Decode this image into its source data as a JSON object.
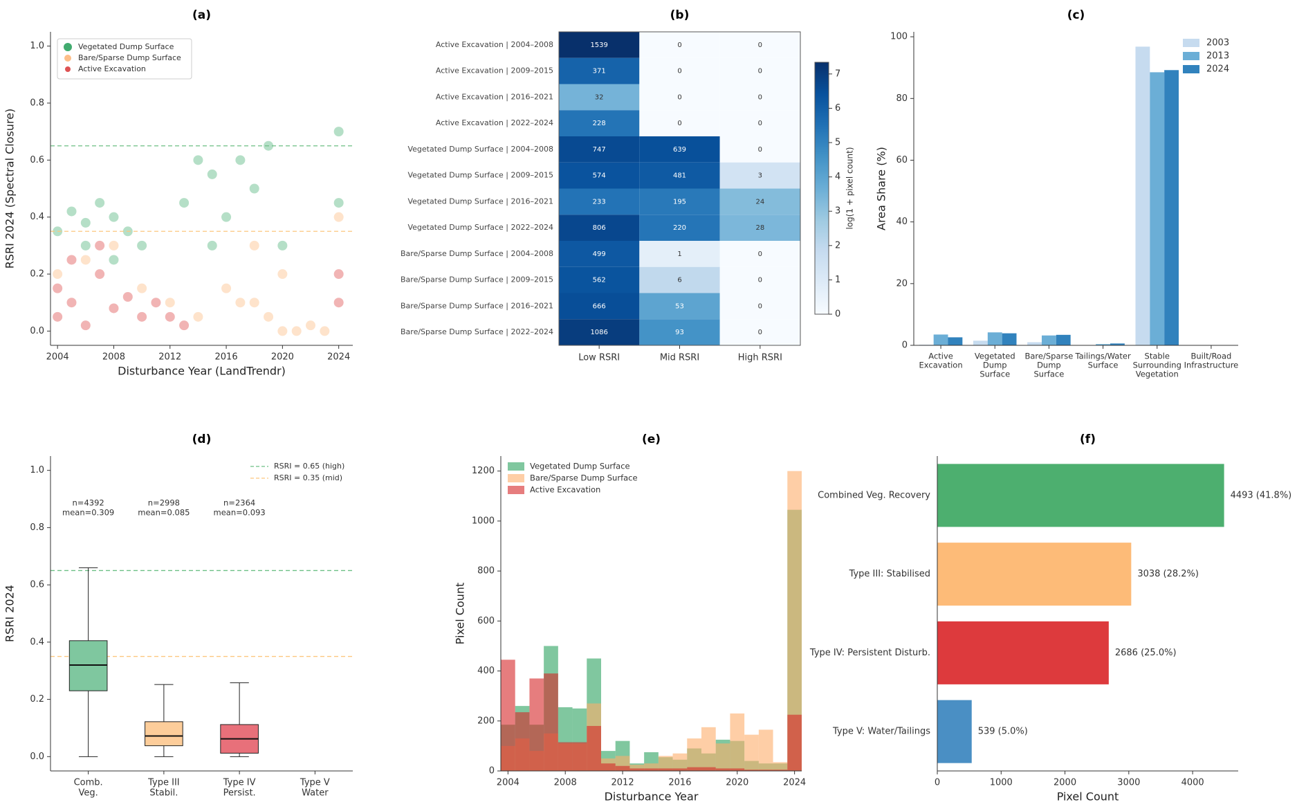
{
  "chart_data": [
    {
      "type": "scatter",
      "title": "(a)",
      "xlabel": "Disturbance Year (LandTrendr)",
      "ylabel": "RSRI 2024 (Spectral Closure)",
      "xlim": [
        2003.5,
        2025
      ],
      "ylim": [
        -0.05,
        1.05
      ],
      "xticks": [
        2004,
        2008,
        2012,
        2016,
        2020,
        2024
      ],
      "yticks": [
        {
          "value": 0,
          "label": "0.0"
        },
        {
          "value": 0.2,
          "label": "0.2"
        },
        {
          "value": 0.4,
          "label": "0.4"
        },
        {
          "value": 0.6,
          "label": "0.6"
        },
        {
          "value": 0.8,
          "label": "0.8"
        },
        {
          "value": 1,
          "label": "1.0"
        }
      ],
      "legend": "upper left",
      "hlines": [
        {
          "value": 0.65,
          "color": "#6cbf84"
        },
        {
          "value": 0.35,
          "color": "#fdc77f"
        }
      ],
      "series": [
        {
          "name": "Vegetated Dump Surface",
          "color": "#2ca25f",
          "x": [
            2004,
            2005,
            2006,
            2007,
            2008,
            2009,
            2010,
            2013,
            2014,
            2015,
            2016,
            2017,
            2018,
            2019,
            2020,
            2024,
            2024,
            2006,
            2008,
            2015
          ],
          "y": [
            0.35,
            0.42,
            0.38,
            0.45,
            0.4,
            0.35,
            0.3,
            0.45,
            0.6,
            0.55,
            0.4,
            0.6,
            0.5,
            0.65,
            0.3,
            0.7,
            0.45,
            0.3,
            0.25,
            0.3
          ]
        },
        {
          "name": "Bare/Sparse Dump Surface",
          "color": "#fdae6b",
          "x": [
            2004,
            2006,
            2008,
            2010,
            2012,
            2014,
            2016,
            2017,
            2018,
            2019,
            2020,
            2021,
            2022,
            2023,
            2024,
            2018,
            2020
          ],
          "y": [
            0.2,
            0.25,
            0.3,
            0.15,
            0.1,
            0.05,
            0.15,
            0.1,
            0.3,
            0.05,
            0,
            0,
            0.02,
            0,
            0.4,
            0.1,
            0.2
          ]
        },
        {
          "name": "Active Excavation",
          "color": "#d62728",
          "x": [
            2004,
            2004,
            2005,
            2006,
            2007,
            2008,
            2009,
            2010,
            2011,
            2012,
            2013,
            2024,
            2024,
            2007,
            2005
          ],
          "y": [
            0.05,
            0.15,
            0.1,
            0.02,
            0.2,
            0.08,
            0.12,
            0.05,
            0.1,
            0.05,
            0.02,
            0.1,
            0.2,
            0.3,
            0.25
          ]
        }
      ]
    },
    {
      "type": "heatmap",
      "title": "(b)",
      "colormap": "Blues",
      "colorbar_label": "log(1 + pixel count)",
      "clim": [
        0,
        7.34
      ],
      "cticks": [
        0,
        1,
        2,
        3,
        4,
        5,
        6,
        7
      ],
      "columns": [
        "Low RSRI",
        "Mid RSRI",
        "High RSRI"
      ],
      "rows": [
        "Active Excavation | 2004–2008",
        "Active Excavation | 2009–2015",
        "Active Excavation | 2016–2021",
        "Active Excavation | 2022–2024",
        "Vegetated Dump Surface | 2004–2008",
        "Vegetated Dump Surface | 2009–2015",
        "Vegetated Dump Surface | 2016–2021",
        "Vegetated Dump Surface | 2022–2024",
        "Bare/Sparse Dump Surface | 2004–2008",
        "Bare/Sparse Dump Surface | 2009–2015",
        "Bare/Sparse Dump Surface | 2016–2021",
        "Bare/Sparse Dump Surface | 2022–2024"
      ],
      "values": [
        [
          1539,
          0,
          0
        ],
        [
          371,
          0,
          0
        ],
        [
          32,
          0,
          0
        ],
        [
          228,
          0,
          0
        ],
        [
          747,
          639,
          0
        ],
        [
          574,
          481,
          3
        ],
        [
          233,
          195,
          24
        ],
        [
          806,
          220,
          28
        ],
        [
          499,
          1,
          0
        ],
        [
          562,
          6,
          0
        ],
        [
          666,
          53,
          0
        ],
        [
          1086,
          93,
          0
        ]
      ]
    },
    {
      "type": "bar",
      "title": "(c)",
      "ylabel": "Area Share (%)",
      "ylim": [
        0,
        101.6
      ],
      "yticks": [
        0,
        20,
        40,
        60,
        80,
        100
      ],
      "legend": "upper right",
      "categories": [
        [
          "Active",
          "Excavation"
        ],
        [
          "Vegetated",
          "Dump",
          "Surface"
        ],
        [
          "Bare/Sparse",
          "Dump",
          "Surface"
        ],
        [
          "Tailings/Water",
          "Surface"
        ],
        [
          "Stable",
          "Surrounding",
          "Vegetation"
        ],
        [
          "Built/Road",
          "Infrastructure"
        ]
      ],
      "series": [
        {
          "name": "2003",
          "color": "#c6dbef",
          "values": [
            0.2,
            1.5,
            1.0,
            0.1,
            96.8,
            0.1
          ]
        },
        {
          "name": "2013",
          "color": "#6baed6",
          "values": [
            3.5,
            4.2,
            3.2,
            0.4,
            88.5,
            0.1
          ]
        },
        {
          "name": "2024",
          "color": "#3182bd",
          "values": [
            2.6,
            3.9,
            3.4,
            0.6,
            89.2,
            0.1
          ]
        }
      ]
    },
    {
      "type": "box",
      "title": "(d)",
      "ylabel": "RSRI 2024",
      "ylim": [
        -0.05,
        1.05
      ],
      "yticks": [
        {
          "value": 0,
          "label": "0.0"
        },
        {
          "value": 0.2,
          "label": "0.2"
        },
        {
          "value": 0.4,
          "label": "0.4"
        },
        {
          "value": 0.6,
          "label": "0.6"
        },
        {
          "value": 0.8,
          "label": "0.8"
        },
        {
          "value": 1,
          "label": "1.0"
        }
      ],
      "legend": "upper right",
      "categories": [
        [
          "Comb.",
          "Veg."
        ],
        [
          "Type III",
          "Stabil."
        ],
        [
          "Type IV",
          "Persist."
        ],
        [
          "Type V",
          "Water"
        ]
      ],
      "boxes": [
        {
          "whislo": 0,
          "q1": 0.23,
          "med": 0.32,
          "q3": 0.405,
          "whishi": 0.66,
          "color": "#7fc79f"
        },
        {
          "whislo": 0,
          "q1": 0.038,
          "med": 0.072,
          "q3": 0.122,
          "whishi": 0.252,
          "color": "#fdcd9a"
        },
        {
          "whislo": 0,
          "q1": 0.012,
          "med": 0.062,
          "q3": 0.112,
          "whishi": 0.258,
          "color": "#e8707a"
        },
        null
      ],
      "annotations": [
        [
          "n=4392",
          "mean=0.309"
        ],
        [
          "n=2998",
          "mean=0.085"
        ],
        [
          "n=2364",
          "mean=0.093"
        ]
      ],
      "hlines": [
        {
          "value": 0.65,
          "name": "RSRI = 0.65 (high)",
          "color": "#6cbf84"
        },
        {
          "value": 0.35,
          "name": "RSRI = 0.35 (mid)",
          "color": "#fdc77f"
        }
      ]
    },
    {
      "type": "histogram",
      "title": "(e)",
      "xlabel": "Disturbance Year",
      "ylabel": "Pixel Count",
      "legend": "upper left",
      "xlim": [
        2003.5,
        2024.5
      ],
      "ylim": [
        0,
        1260
      ],
      "xticks": [
        2004,
        2008,
        2012,
        2016,
        2020,
        2024
      ],
      "yticks": [
        0,
        200,
        400,
        600,
        800,
        1000,
        1200
      ],
      "bins": [
        2003.5,
        2004.5,
        2005.5,
        2006.5,
        2007.5,
        2008.5,
        2009.5,
        2010.5,
        2011.5,
        2012.5,
        2013.5,
        2014.5,
        2015.5,
        2016.5,
        2017.5,
        2018.5,
        2019.5,
        2020.5,
        2021.5,
        2022.5,
        2023.5,
        2024.5
      ],
      "series": [
        {
          "name": "Vegetated Dump Surface",
          "color": "#2ca25f",
          "values": [
            185,
            260,
            185,
            500,
            255,
            250,
            450,
            80,
            120,
            30,
            75,
            55,
            45,
            90,
            70,
            125,
            120,
            40,
            30,
            30,
            1045
          ]
        },
        {
          "name": "Bare/Sparse Dump Surface",
          "color": "#fdae6b",
          "values": [
            100,
            130,
            80,
            150,
            110,
            110,
            270,
            50,
            60,
            25,
            30,
            60,
            70,
            130,
            175,
            110,
            230,
            145,
            165,
            35,
            1200
          ]
        },
        {
          "name": "Active Excavation",
          "color": "#d62728",
          "values": [
            445,
            235,
            370,
            390,
            115,
            115,
            180,
            30,
            20,
            10,
            10,
            10,
            10,
            15,
            15,
            10,
            10,
            5,
            5,
            5,
            225
          ]
        }
      ]
    },
    {
      "type": "hbar",
      "title": "(f)",
      "xlabel": "Pixel Count",
      "xlim": [
        0,
        4714
      ],
      "xticks": [
        0,
        1000,
        2000,
        3000,
        4000
      ],
      "categories": [
        "Combined Veg. Recovery",
        "Type III: Stabilised",
        "Type IV: Persistent Disturb.",
        "Type V: Water/Tailings"
      ],
      "values": [
        4493,
        3038,
        2686,
        539
      ],
      "value_labels": [
        "4493 (41.8%)",
        "3038 (28.2%)",
        "2686 (25.0%)",
        "539 (5.0%)"
      ],
      "colors": [
        "#4daf6f",
        "#fdbb78",
        "#dd3a3d",
        "#4a8fc4"
      ]
    }
  ]
}
